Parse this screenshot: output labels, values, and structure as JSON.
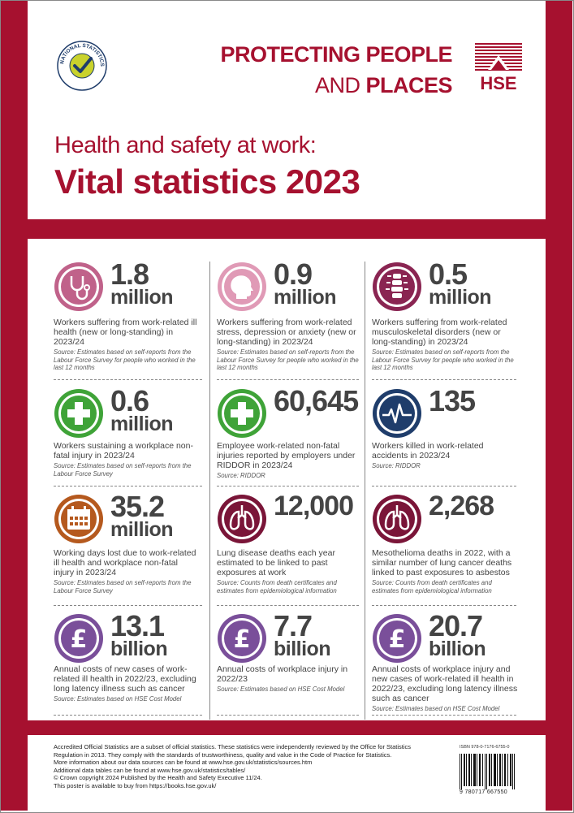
{
  "header": {
    "slogan_line1": "PROTECTING PEOPLE",
    "slogan_and": "AND ",
    "slogan_places": "PLACES",
    "hse_logo_text": "HSE",
    "ns_logo_text": "NATIONAL STATISTICS",
    "sub_title": "Health and safety at work:",
    "main_title": "Vital statistics 2023"
  },
  "colors": {
    "brand": "#a6112f",
    "green": "#3fa338",
    "pink": "#c0628a",
    "plum": "#8a2552",
    "navy": "#1f3d6b",
    "orange": "#b5591e",
    "maroon": "#7a1538",
    "purple": "#7a4f9a"
  },
  "stats": [
    {
      "icon": "stethoscope-icon",
      "number": "1.8",
      "unit": "million",
      "description": "Workers suffering from work-related ill health (new or long-standing) in 2023/24",
      "source": "Source: Estimates based on self-reports from the Labour Force Survey for people who worked in the last 12 months"
    },
    {
      "icon": "head-profile-icon",
      "number": "0.9",
      "unit": "million",
      "description": "Workers suffering from work-related stress, depression or anxiety (new or long-standing) in 2023/24",
      "source": "Source: Estimates based on self-reports from the Labour Force Survey for people who worked in the last 12 months"
    },
    {
      "icon": "spine-icon",
      "number": "0.5",
      "unit": "million",
      "description": "Workers suffering from work-related musculoskeletal disorders (new or long-standing) in 2023/24",
      "source": "Source: Estimates based on self-reports from the Labour Force Survey for people who worked in the last 12 months"
    },
    {
      "icon": "first-aid-cross-icon",
      "number": "0.6",
      "unit": "million",
      "description": "Workers sustaining a workplace non-fatal injury in 2023/24",
      "source": "Source: Estimates based on self-reports from the Labour Force Survey"
    },
    {
      "icon": "first-aid-cross-icon",
      "number": "60,645",
      "unit": "",
      "description": "Employee work-related non-fatal injuries reported by employers under RIDDOR in 2023/24",
      "source": "Source: RIDDOR"
    },
    {
      "icon": "heartbeat-icon",
      "number": "135",
      "unit": "",
      "description": "Workers killed in work-related accidents in 2023/24",
      "source": "Source: RIDDOR"
    },
    {
      "icon": "calendar-icon",
      "number": "35.2",
      "unit": "million",
      "description": "Working days lost due to work-related ill health and workplace non-fatal injury in 2023/24",
      "source": "Source: Estimates based on self-reports from the Labour Force Survey"
    },
    {
      "icon": "lungs-icon",
      "number": "12,000",
      "unit": "",
      "description": "Lung disease deaths each year estimated to be linked to past exposures at work",
      "source": "Source: Counts from death certificates and estimates from epidemiological information"
    },
    {
      "icon": "lungs-icon",
      "number": "2,268",
      "unit": "",
      "description": "Mesothelioma deaths in 2022, with a similar number of lung cancer deaths linked to past exposures to asbestos",
      "source": "Source: Counts from death certificates and estimates from epidemiological information"
    },
    {
      "icon": "pound-icon",
      "number": "13.1",
      "unit": "billion",
      "description": "Annual costs of new cases of work-related ill health in 2022/23, excluding long latency illness such as cancer",
      "source": "Source: Estimates based on HSE Cost Model"
    },
    {
      "icon": "pound-icon",
      "number": "7.7",
      "unit": "billion",
      "description": "Annual costs of workplace injury in 2022/23",
      "source": "Source: Estimates based on HSE Cost Model"
    },
    {
      "icon": "pound-icon",
      "number": "20.7",
      "unit": "billion",
      "description": "Annual costs of workplace injury and new cases of work-related ill health in 2022/23, excluding long latency illness such as cancer",
      "source": "Source: Estimates based on HSE Cost Model"
    }
  ],
  "footer": {
    "line1": "Accredited Official Statistics are a subset of official statistics. These statistics were independently reviewed by the Office for Statistics",
    "line2": "Regulation in 2013. They comply with the standards of trustworthiness, quality and value in the Code of Practice for Statistics.",
    "line3": "More information about our data sources can be found at www.hse.gov.uk/statistics/sources.htm",
    "line4": "Additional data tables can be found at www.hse.gov.uk/statistics/tables/",
    "line5": "© Crown copyright 2024   Published by the Health and Safety Executive 11/24.",
    "line6": "This poster is available to buy from https://books.hse.gov.uk/",
    "isbn": "ISBN 978-0-7176-6755-0",
    "barcode_number": "9 780717 667550"
  }
}
